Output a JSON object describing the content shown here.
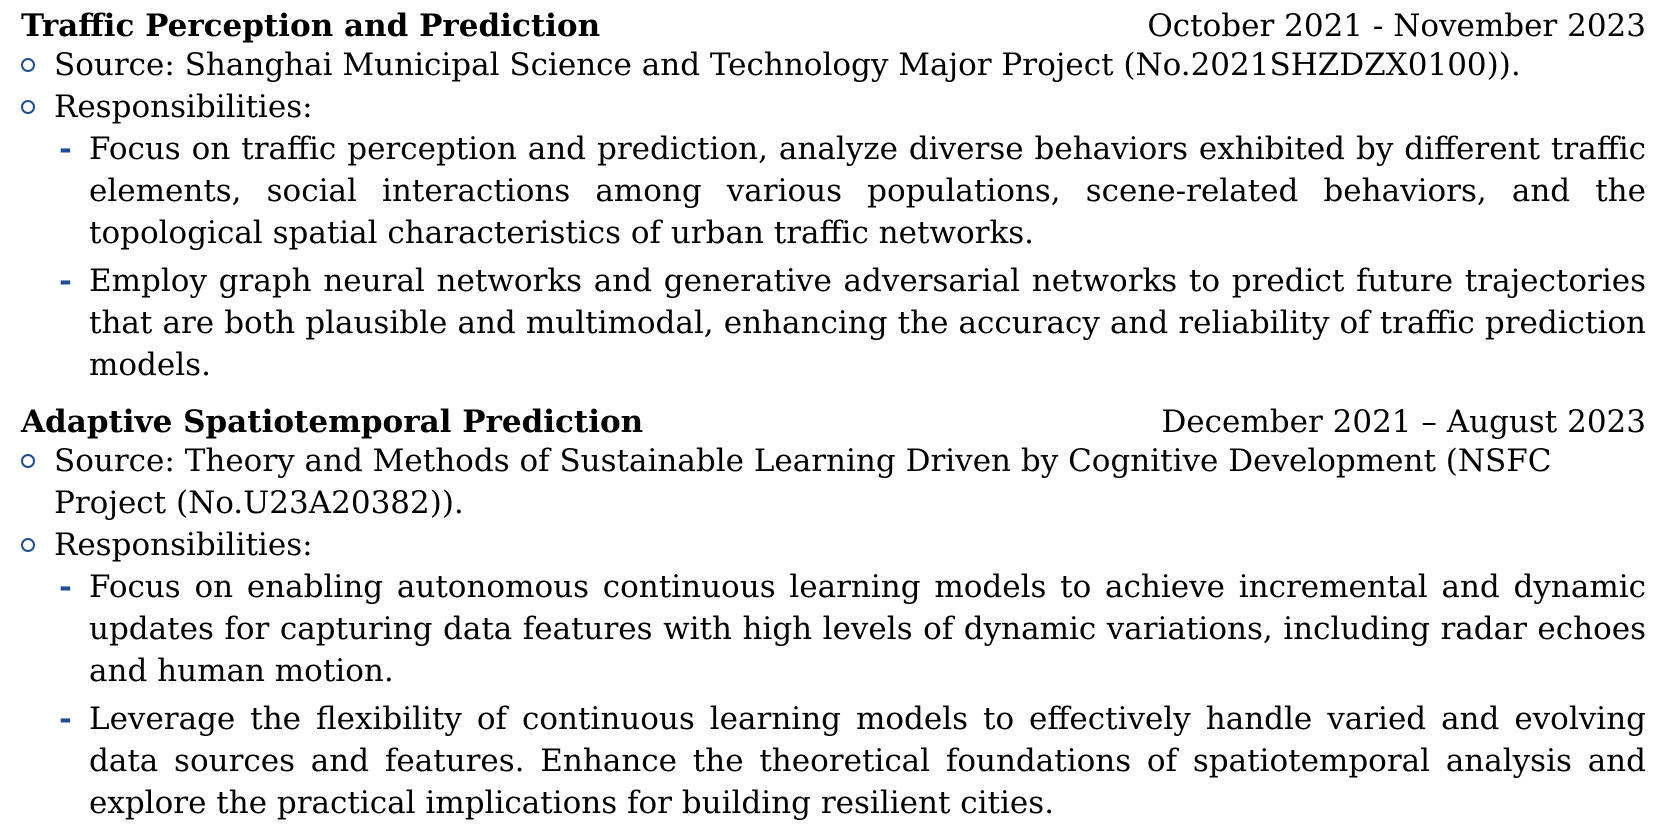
{
  "projects": [
    {
      "title": "Traffic Perception and Prediction",
      "dates": "October 2021 - November 2023",
      "source": "Source: Shanghai Municipal Science and Technology Major Project (No.2021SHZDZX0100)).",
      "responsibilities_label": "Responsibilities:",
      "responsibilities": [
        "Focus on traffic perception and prediction, analyze diverse behaviors exhibited by different traffic elements, social interactions among various populations, scene-related behaviors, and the topological spatial characteristics of urban traffic networks.",
        "Employ graph neural networks and generative adversarial networks to predict future trajectories that are both plausible and multimodal, enhancing the accuracy and reliability of traffic prediction models."
      ]
    },
    {
      "title": "Adaptive Spatiotemporal Prediction",
      "dates": "December 2021 – August 2023",
      "source": "Source: Theory and Methods of Sustainable Learning Driven by Cognitive Development (NSFC Project (No.U23A20382)).",
      "responsibilities_label": "Responsibilities:",
      "responsibilities": [
        "Focus on enabling autonomous continuous learning models to achieve incremental and dynamic updates for capturing data features with high levels of dynamic variations, including radar echoes and human motion.",
        "Leverage the flexibility of continuous learning models to effectively handle varied and evolving data sources and features. Enhance the theoretical foundations of spatiotemporal analysis and explore the practical implications for building resilient cities."
      ]
    }
  ],
  "colors": {
    "accent": "#1f4e96",
    "text": "#000000"
  }
}
